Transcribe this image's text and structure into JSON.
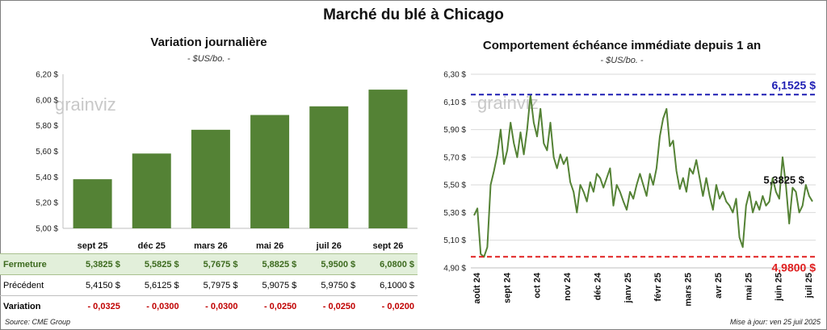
{
  "title": "Marché du blé à Chicago",
  "left": {
    "title": "Variation journalière",
    "unit": "- $US/bo. -",
    "watermark": "grainviz"
  },
  "right": {
    "title": "Comportement échéance immédiate depuis 1 an",
    "unit": "- $US/bo. -",
    "watermark": "grainviz"
  },
  "table": {
    "rows": [
      {
        "label": "Fermeture",
        "values": [
          "5,3825  $",
          "5,5825  $",
          "5,7675  $",
          "5,8825  $",
          "5,9500  $",
          "6,0800  $"
        ]
      },
      {
        "label": "Précédent",
        "values": [
          "5,4150  $",
          "5,6125  $",
          "5,7975  $",
          "5,9075  $",
          "5,9750  $",
          "6,1000  $"
        ]
      },
      {
        "label": "Variation",
        "values": [
          "- 0,0325",
          "- 0,0300",
          "- 0,0300",
          "- 0,0250",
          "- 0,0250",
          "- 0,0200"
        ]
      }
    ]
  },
  "footer": {
    "source": "Source: CME Group",
    "update": "Mise à jour: ven 25 juil 2025"
  },
  "colors": {
    "bar": "#548235",
    "line": "#548235",
    "max_line": "#1f1fb4",
    "min_line": "#e02020"
  },
  "chart_data": [
    {
      "type": "bar",
      "categories": [
        "sept 25",
        "déc 25",
        "mars 26",
        "mai 26",
        "juil 26",
        "sept 26"
      ],
      "values": [
        5.3825,
        5.5825,
        5.7675,
        5.8825,
        5.95,
        6.08
      ],
      "ylim": [
        5.0,
        6.2
      ],
      "yticks": [
        "5,00 $",
        "5,20 $",
        "5,40 $",
        "5,60 $",
        "5,80 $",
        "6,00 $",
        "6,20 $"
      ],
      "grid": false
    },
    {
      "type": "line",
      "x_labels": [
        "août 24",
        "sept 24",
        "oct 24",
        "nov 24",
        "déc 24",
        "janv 25",
        "févr 25",
        "mars 25",
        "avr 25",
        "mai 25",
        "juin 25",
        "juil 25"
      ],
      "ylim": [
        4.9,
        6.3
      ],
      "yticks": [
        "4,90 $",
        "5,10 $",
        "5,30 $",
        "5,50 $",
        "5,70 $",
        "5,90 $",
        "6,10 $",
        "6,30 $"
      ],
      "values": [
        5.28,
        5.33,
        5.0,
        4.98,
        5.05,
        5.5,
        5.6,
        5.72,
        5.9,
        5.65,
        5.75,
        5.95,
        5.8,
        5.7,
        5.88,
        5.72,
        5.9,
        6.15,
        5.95,
        5.85,
        6.05,
        5.8,
        5.75,
        5.95,
        5.7,
        5.62,
        5.72,
        5.65,
        5.7,
        5.52,
        5.45,
        5.3,
        5.5,
        5.45,
        5.38,
        5.52,
        5.45,
        5.58,
        5.55,
        5.48,
        5.55,
        5.62,
        5.35,
        5.5,
        5.45,
        5.38,
        5.32,
        5.45,
        5.4,
        5.5,
        5.58,
        5.5,
        5.42,
        5.58,
        5.5,
        5.62,
        5.85,
        5.98,
        6.05,
        5.78,
        5.82,
        5.6,
        5.47,
        5.55,
        5.45,
        5.62,
        5.58,
        5.68,
        5.55,
        5.42,
        5.55,
        5.42,
        5.32,
        5.5,
        5.4,
        5.45,
        5.38,
        5.35,
        5.3,
        5.4,
        5.12,
        5.05,
        5.35,
        5.45,
        5.3,
        5.38,
        5.32,
        5.42,
        5.35,
        5.38,
        5.55,
        5.45,
        5.4,
        5.7,
        5.5,
        5.22,
        5.48,
        5.45,
        5.3,
        5.35,
        5.5,
        5.42,
        5.38
      ],
      "last_value_label": "5,3825 $",
      "max_label": "6,1525 $",
      "min_label": "4,9800 $",
      "max": 6.1525,
      "min": 4.98,
      "grid": true
    }
  ]
}
